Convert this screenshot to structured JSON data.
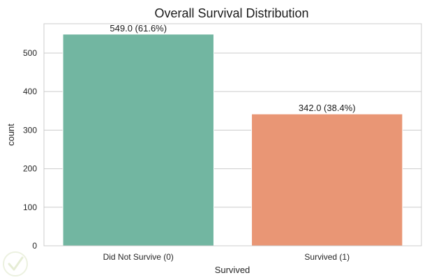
{
  "chart_data": {
    "type": "bar",
    "title": "Overall Survival Distribution",
    "xlabel": "Survived",
    "ylabel": "count",
    "categories": [
      "Did Not Survive (0)",
      "Survived (1)"
    ],
    "values": [
      549,
      342
    ],
    "data_labels": [
      "549.0 (61.6%)",
      "342.0 (38.4%)"
    ],
    "ylim": [
      0,
      576
    ],
    "yticks": [
      "0",
      "100",
      "200",
      "300",
      "400",
      "500"
    ],
    "ytick_values": [
      0,
      100,
      200,
      300,
      400,
      500
    ],
    "colors": [
      "#72b6a1",
      "#e99675"
    ],
    "grid": true,
    "legend": "none"
  },
  "watermark": {
    "icon": "checkmark-shield-icon"
  }
}
